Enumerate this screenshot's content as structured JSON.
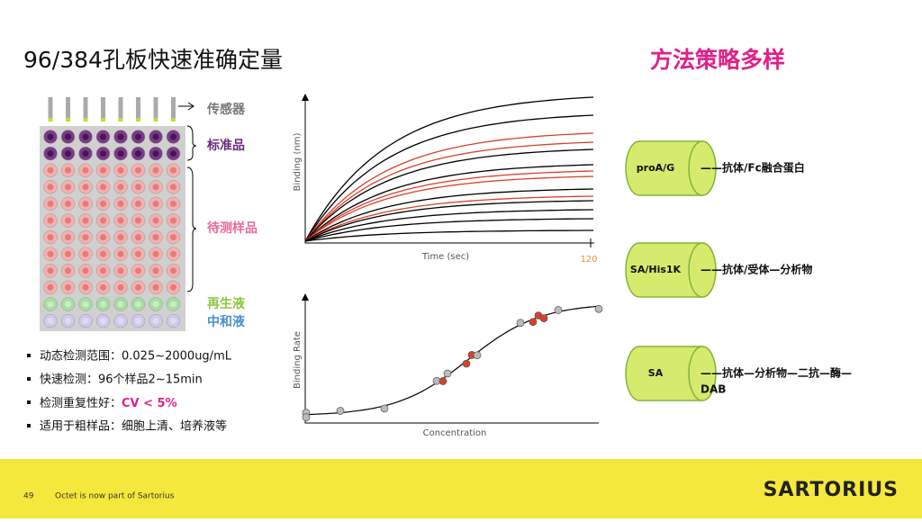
{
  "header": {
    "title": "96/384孔板快速准确定量",
    "subtitle": "方法策略多样"
  },
  "plate": {
    "labels": {
      "sensor": "传感器",
      "standard": "标准品",
      "sample": "待测样品",
      "regen": "再生液",
      "neutral": "中和液"
    }
  },
  "bullets": [
    "动态检测范围：0.025~2000ug/mL",
    "快速检测：96个样品2~15min",
    {
      "text": "检测重复性好：",
      "highlight": "CV < 5%"
    },
    "适用于粗样品：细胞上清、培养液等"
  ],
  "kinetics": {
    "y_label": "Binding (nm)",
    "x_label": "Time (sec)",
    "x_tick": "120"
  },
  "dose": {
    "y_label": "Binding Rate",
    "x_label": "Concentration"
  },
  "methods": [
    {
      "sensor": "proA/G",
      "desc": "——抗体/Fc融合蛋白"
    },
    {
      "sensor": "SA/His1K",
      "desc": "——抗体/受体—分析物"
    },
    {
      "sensor": "SA",
      "desc": "——抗体—分析物—二抗—酶—",
      "desc2": "DAB"
    }
  ],
  "footer": {
    "page": "49",
    "note": "Octet is now part of Sartorius",
    "logo": "SARTORIUS"
  }
}
